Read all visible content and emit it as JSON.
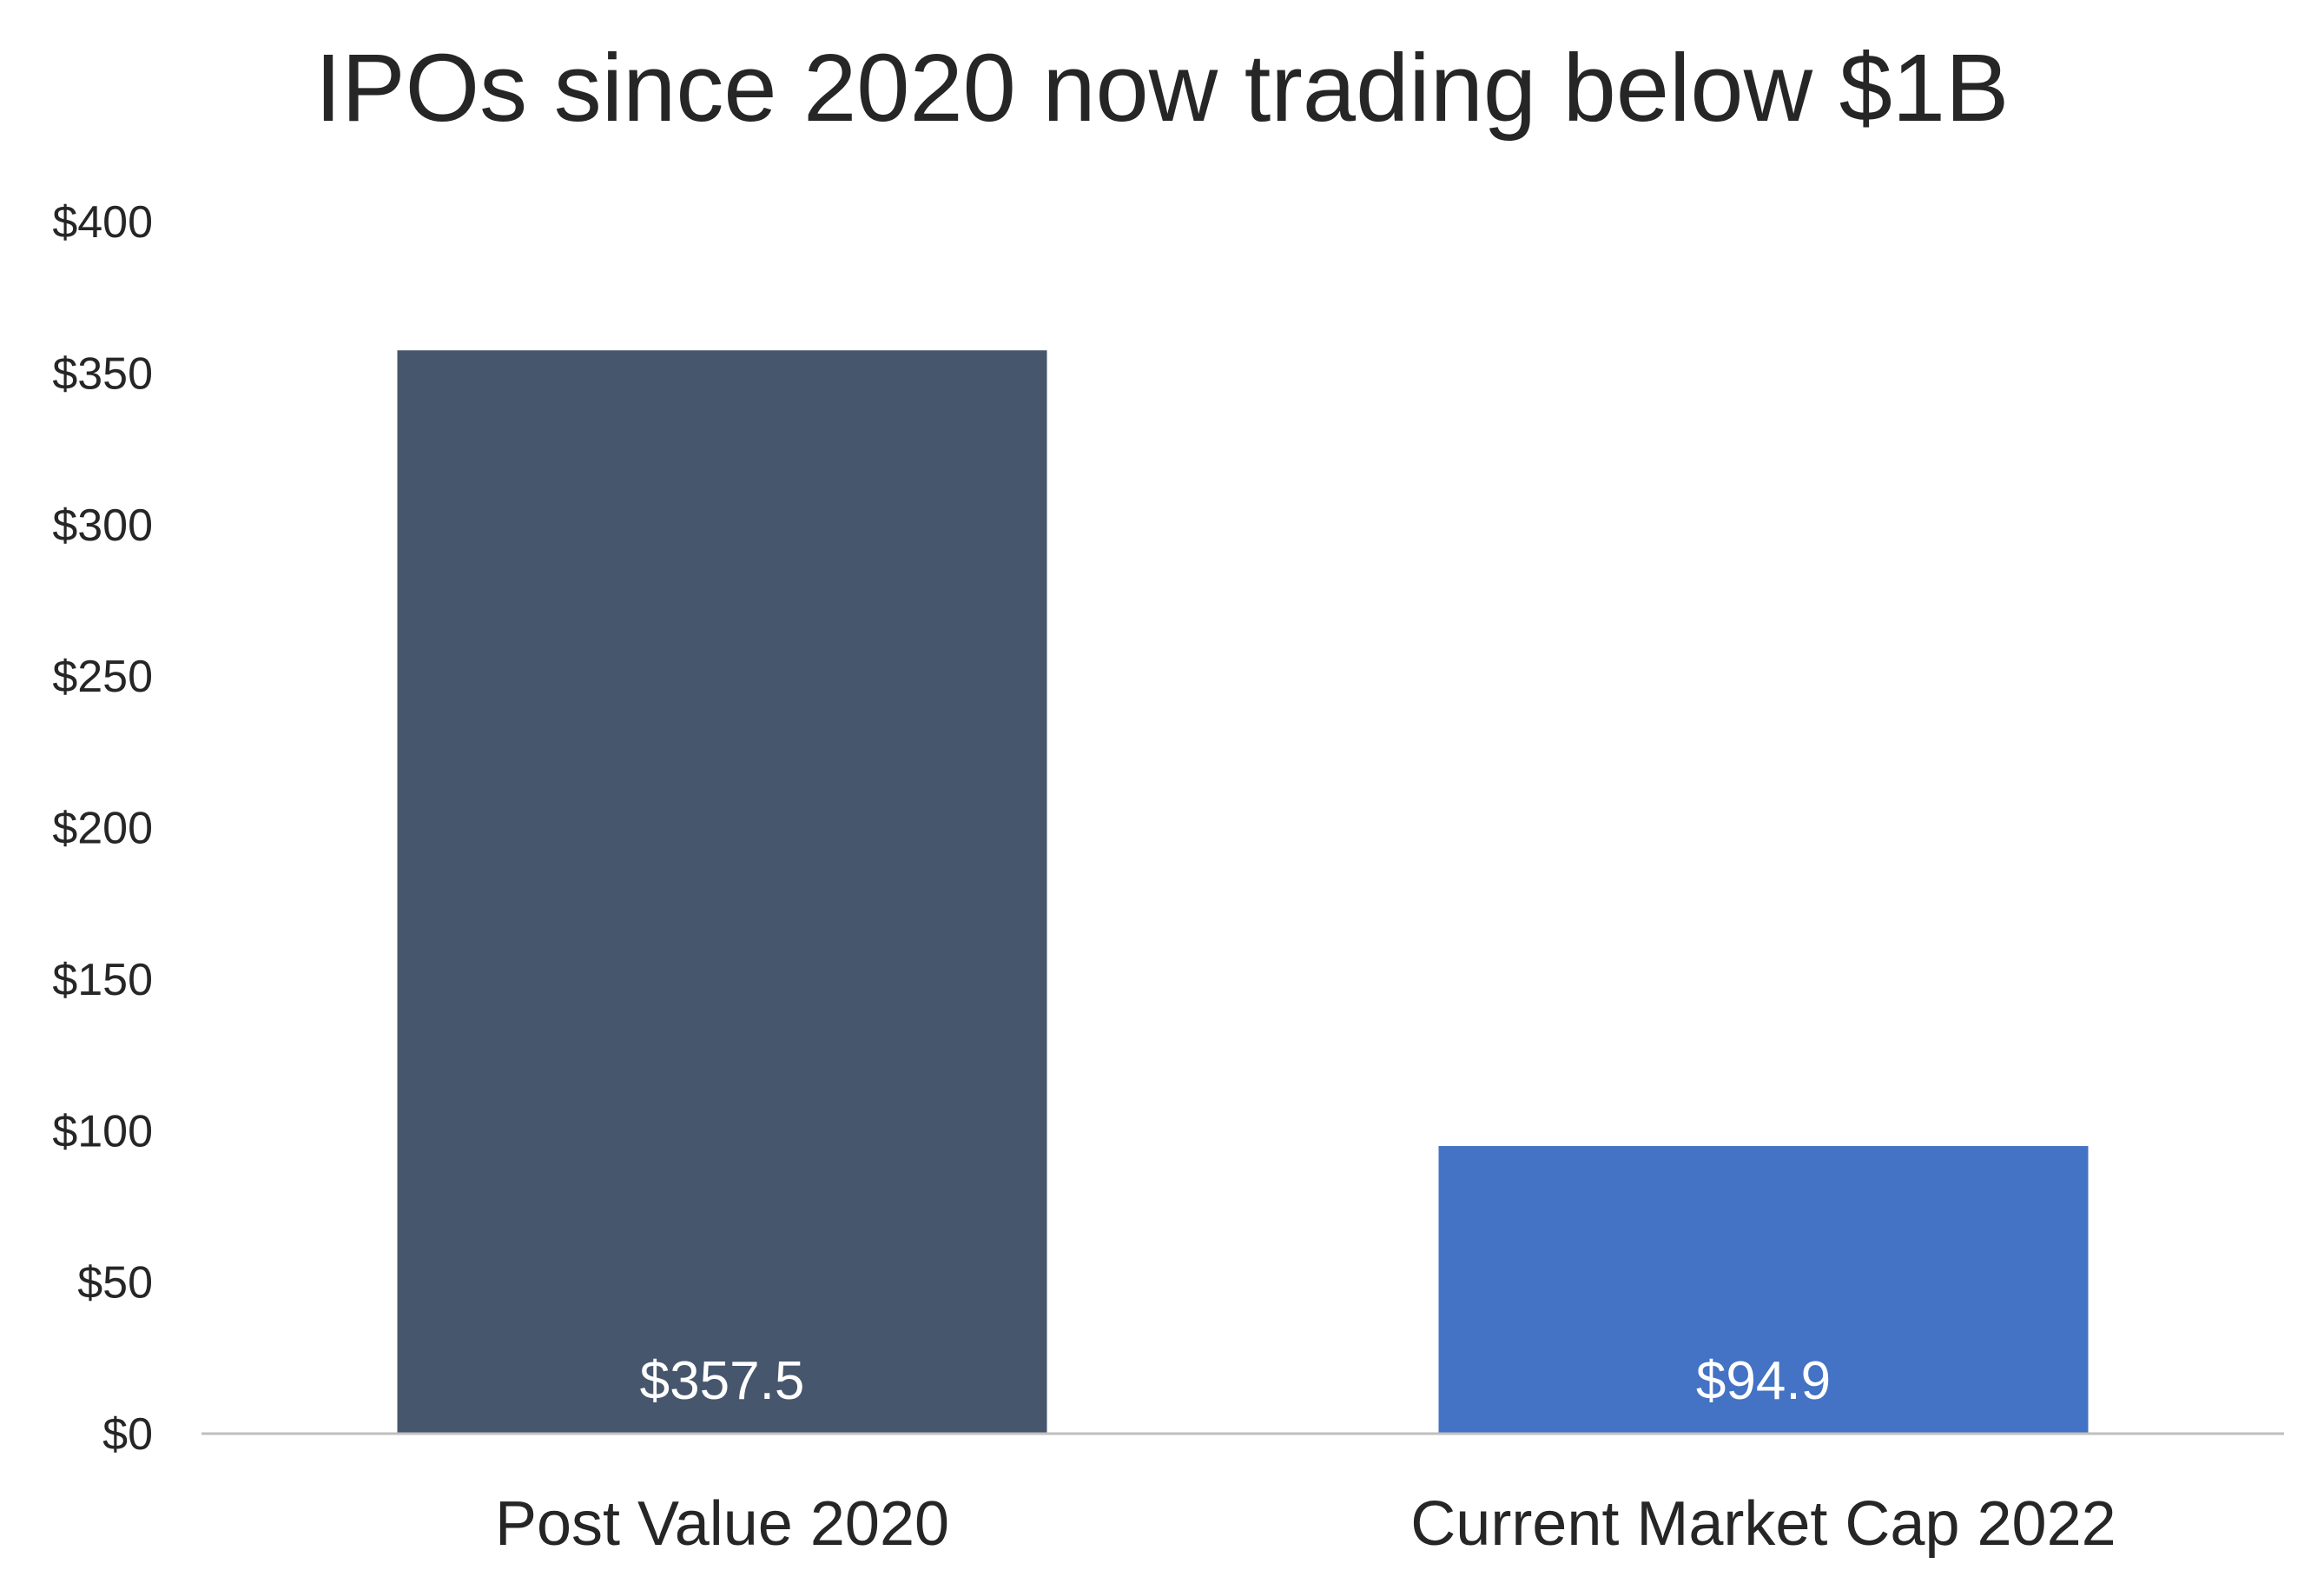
{
  "chart_data": {
    "type": "bar",
    "title": "IPOs since 2020 now trading below $1B",
    "xlabel": "",
    "ylabel": "",
    "categories": [
      "Post Value 2020",
      "Current Market Cap 2022"
    ],
    "values": [
      357.5,
      94.9
    ],
    "data_labels": [
      "$357.5",
      "$94.9"
    ],
    "bar_colors": [
      "#46566c",
      "#4472c4"
    ],
    "ylim": [
      0,
      400
    ],
    "yticks": [
      0,
      50,
      100,
      150,
      200,
      250,
      300,
      350,
      400
    ],
    "ytick_labels": [
      "$0",
      "$50",
      "$100",
      "$150",
      "$200",
      "$250",
      "$300",
      "$350",
      "$400"
    ],
    "grid": false,
    "legend": "none"
  }
}
